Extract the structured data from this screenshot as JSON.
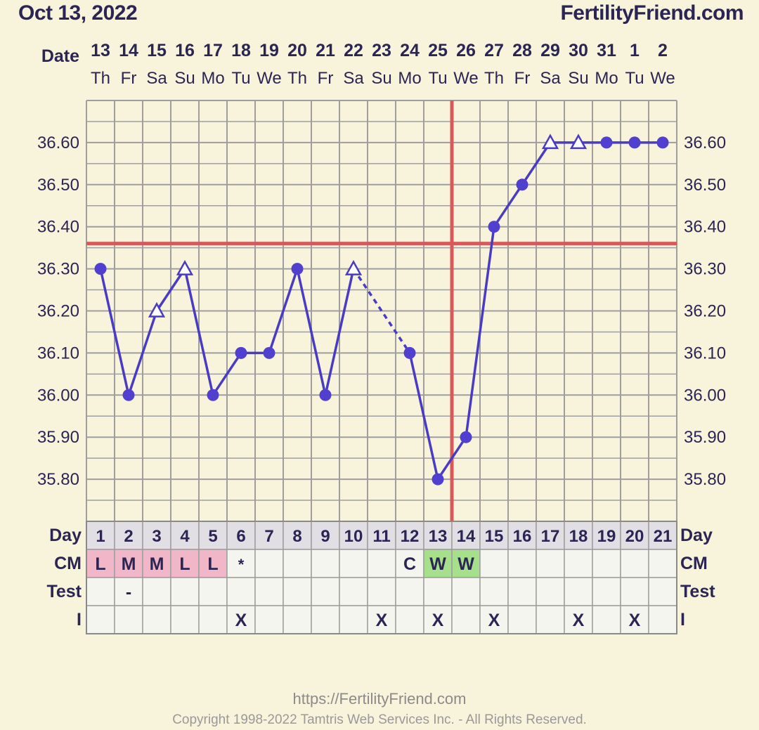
{
  "header": {
    "date": "Oct 13, 2022",
    "site": "FertilityFriend.com"
  },
  "labels": {
    "date_row": "Date",
    "day_row": "Day",
    "cm_row": "CM",
    "test_row": "Test",
    "i_row": "I"
  },
  "columns": {
    "dates": [
      "13",
      "14",
      "15",
      "16",
      "17",
      "18",
      "19",
      "20",
      "21",
      "22",
      "23",
      "24",
      "25",
      "26",
      "27",
      "28",
      "29",
      "30",
      "31",
      "1",
      "2"
    ],
    "weekdays": [
      "Th",
      "Fr",
      "Sa",
      "Su",
      "Mo",
      "Tu",
      "We",
      "Th",
      "Fr",
      "Sa",
      "Su",
      "Mo",
      "Tu",
      "We",
      "Th",
      "Fr",
      "Sa",
      "Su",
      "Mo",
      "Tu",
      "We"
    ],
    "days": [
      "1",
      "2",
      "3",
      "4",
      "5",
      "6",
      "7",
      "8",
      "9",
      "10",
      "11",
      "12",
      "13",
      "14",
      "15",
      "16",
      "17",
      "18",
      "19",
      "20",
      "21"
    ],
    "cm": [
      "L",
      "M",
      "M",
      "L",
      "L",
      "*",
      "",
      "",
      "",
      "",
      "",
      "C",
      "W",
      "W",
      "",
      "",
      "",
      "",
      "",
      "",
      ""
    ],
    "cm_types": [
      "menses",
      "menses",
      "menses",
      "menses",
      "menses",
      "other",
      "",
      "",
      "",
      "",
      "",
      "plain",
      "fertile",
      "fertile",
      "",
      "",
      "",
      "",
      "",
      "",
      ""
    ],
    "test": [
      "",
      "-",
      "",
      "",
      "",
      "",
      "",
      "",
      "",
      "",
      "",
      "",
      "",
      "",
      "",
      "",
      "",
      "",
      "",
      "",
      ""
    ],
    "intercourse": [
      "",
      "",
      "",
      "",
      "",
      "X",
      "",
      "",
      "",
      "",
      "X",
      "",
      "X",
      "",
      "X",
      "",
      "",
      "X",
      "",
      "X",
      ""
    ]
  },
  "chart_data": {
    "type": "line",
    "x": [
      "1",
      "2",
      "3",
      "4",
      "5",
      "6",
      "7",
      "8",
      "9",
      "10",
      "11",
      "12",
      "13",
      "14",
      "15",
      "16",
      "17",
      "18",
      "19",
      "20",
      "21"
    ],
    "y_ticks": [
      "35.80",
      "35.90",
      "36.00",
      "36.10",
      "36.20",
      "36.30",
      "36.40",
      "36.50",
      "36.60"
    ],
    "ylim": [
      35.7,
      36.7
    ],
    "series": [
      {
        "values": [
          36.3,
          36.0,
          36.2,
          36.3,
          36.0,
          36.1,
          36.1,
          36.3,
          36.0,
          36.3,
          null,
          36.1,
          35.8,
          35.9,
          36.4,
          36.5,
          36.6,
          36.6,
          36.6,
          36.6,
          36.6
        ],
        "markers": [
          "dot",
          "dot",
          "triangle",
          "triangle",
          "dot",
          "dot",
          "dot",
          "dot",
          "dot",
          "triangle",
          "",
          "dot",
          "dot",
          "dot",
          "dot",
          "dot",
          "triangle",
          "triangle",
          "dot",
          "dot",
          "dot"
        ]
      }
    ],
    "coverline": 36.36,
    "ovulation_day": "14",
    "grid": true,
    "colors": {
      "line": "#4a3bc4",
      "marker": "#5140cf",
      "reference": "#d9595a",
      "grid": "#9e9e9e",
      "menses_cell": "#f2b6c9",
      "fertile_cell": "#a6e08a",
      "header_cell": "#e1dfe4",
      "row_cell": "#f5f5ef"
    }
  },
  "footer": {
    "url": "https://FertilityFriend.com",
    "copyright": "Copyright 1998-2022 Tamtris Web Services Inc. - All Rights Reserved."
  }
}
